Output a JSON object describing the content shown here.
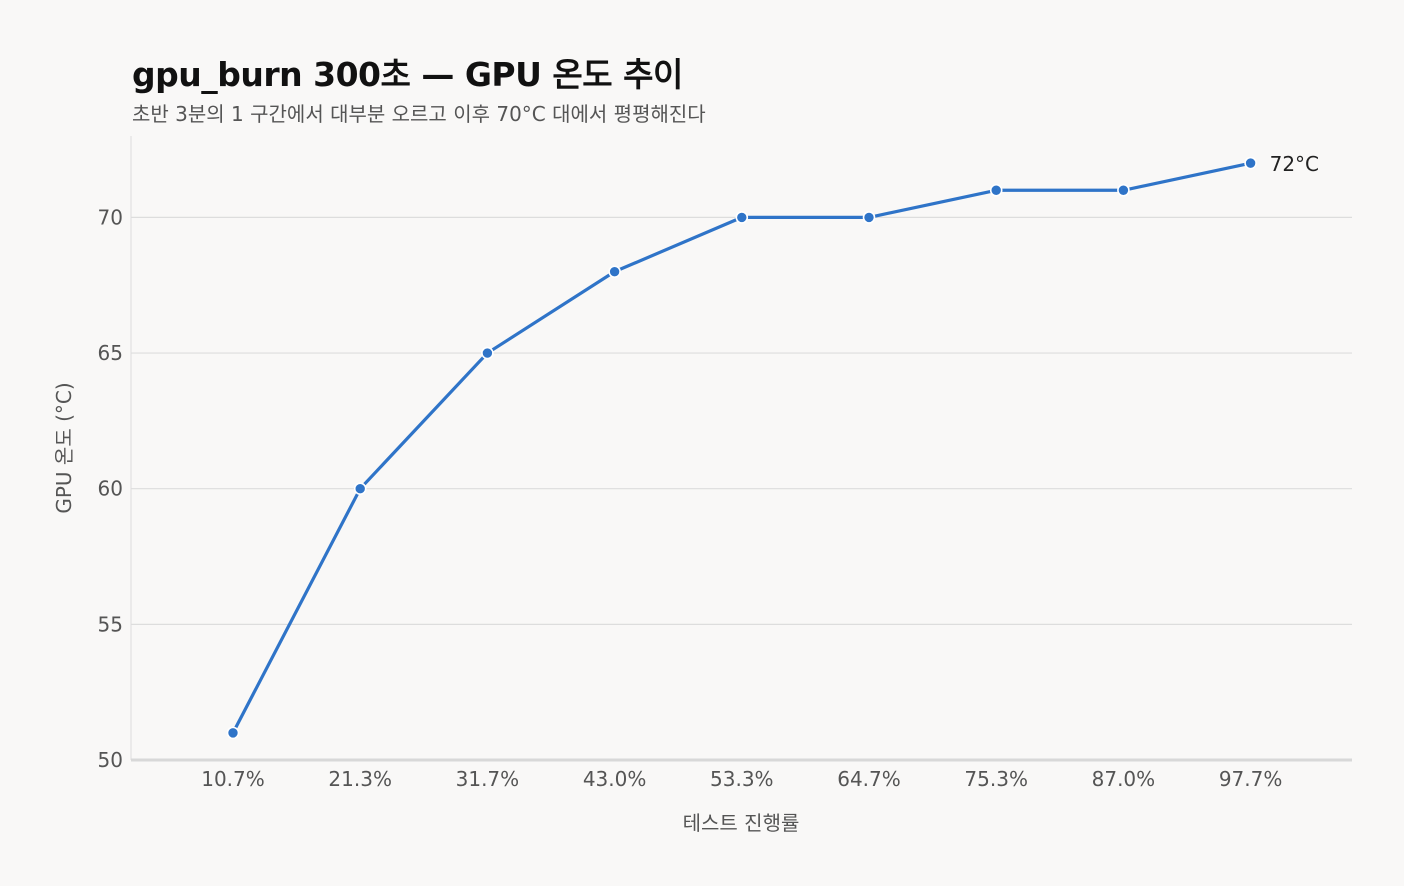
{
  "chart_data": {
    "type": "line",
    "title": "gpu_burn 300초 — GPU 온도 추이",
    "subtitle": "초반 3분의 1 구간에서 대부분 오르고 이후 70°C 대에서 평평해진다",
    "xlabel": "테스트 진행률",
    "ylabel": "GPU 온도 (°C)",
    "categories": [
      "10.7%",
      "21.3%",
      "31.7%",
      "43.0%",
      "53.3%",
      "64.7%",
      "75.3%",
      "87.0%",
      "97.7%"
    ],
    "values": [
      51,
      60,
      65,
      68,
      70,
      70,
      71,
      71,
      72
    ],
    "ylim": [
      50,
      73
    ],
    "yticks": [
      50,
      55,
      60,
      65,
      70
    ],
    "grid": "horizontal",
    "end_label": "72°C",
    "colors": {
      "line": "#2f74c8",
      "grid": "#dddddd",
      "axis": "#cccccc",
      "background": "#f9f8f7"
    }
  }
}
